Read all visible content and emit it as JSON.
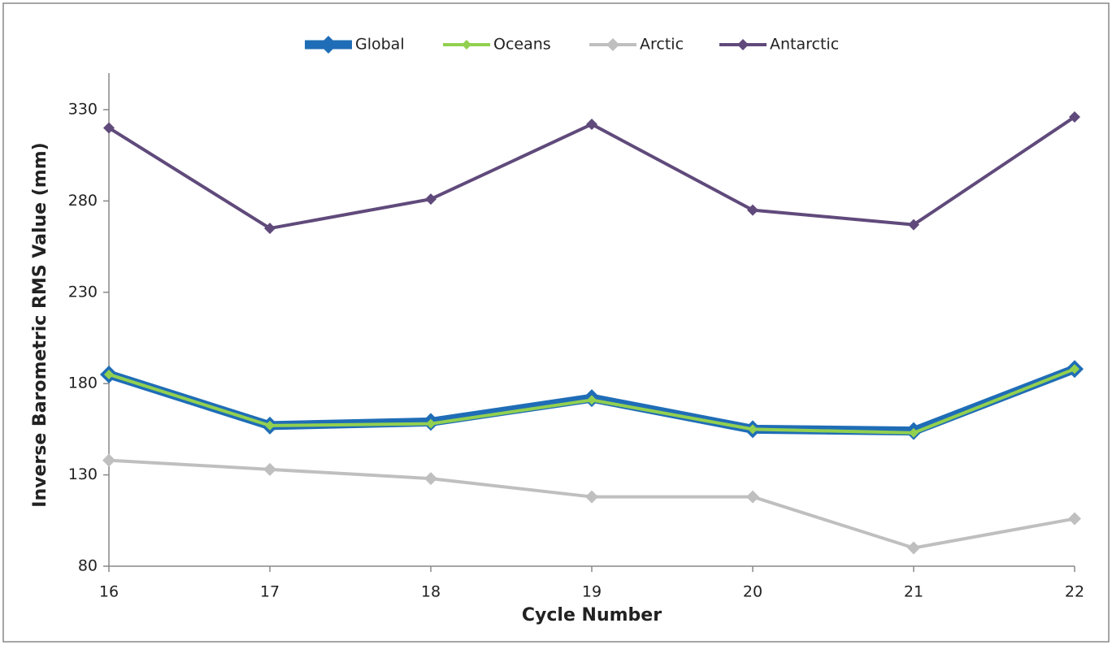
{
  "chart_data": {
    "type": "line",
    "x": [
      16,
      17,
      18,
      19,
      20,
      21,
      22
    ],
    "xlim": [
      16,
      22
    ],
    "xticks": [
      16,
      17,
      18,
      19,
      20,
      21,
      22
    ],
    "ylim": [
      80,
      350
    ],
    "yticks": [
      80,
      130,
      180,
      230,
      280,
      330
    ],
    "xlabel": "Cycle Number",
    "ylabel": "Inverse Barometric RMS Value (mm)",
    "legend": "top",
    "series": [
      {
        "name": "Global",
        "color": "#1f6db6",
        "values": [
          185,
          157,
          159,
          172,
          155,
          154,
          188
        ]
      },
      {
        "name": "Oceans",
        "color": "#92d050",
        "values": [
          185,
          157,
          158,
          171,
          155,
          153,
          188
        ]
      },
      {
        "name": "Arctic",
        "color": "#bfbfbf",
        "values": [
          138,
          133,
          128,
          118,
          118,
          90,
          106
        ]
      },
      {
        "name": "Antarctic",
        "color": "#604a7b",
        "values": [
          320,
          265,
          281,
          322,
          275,
          267,
          326
        ]
      }
    ]
  }
}
